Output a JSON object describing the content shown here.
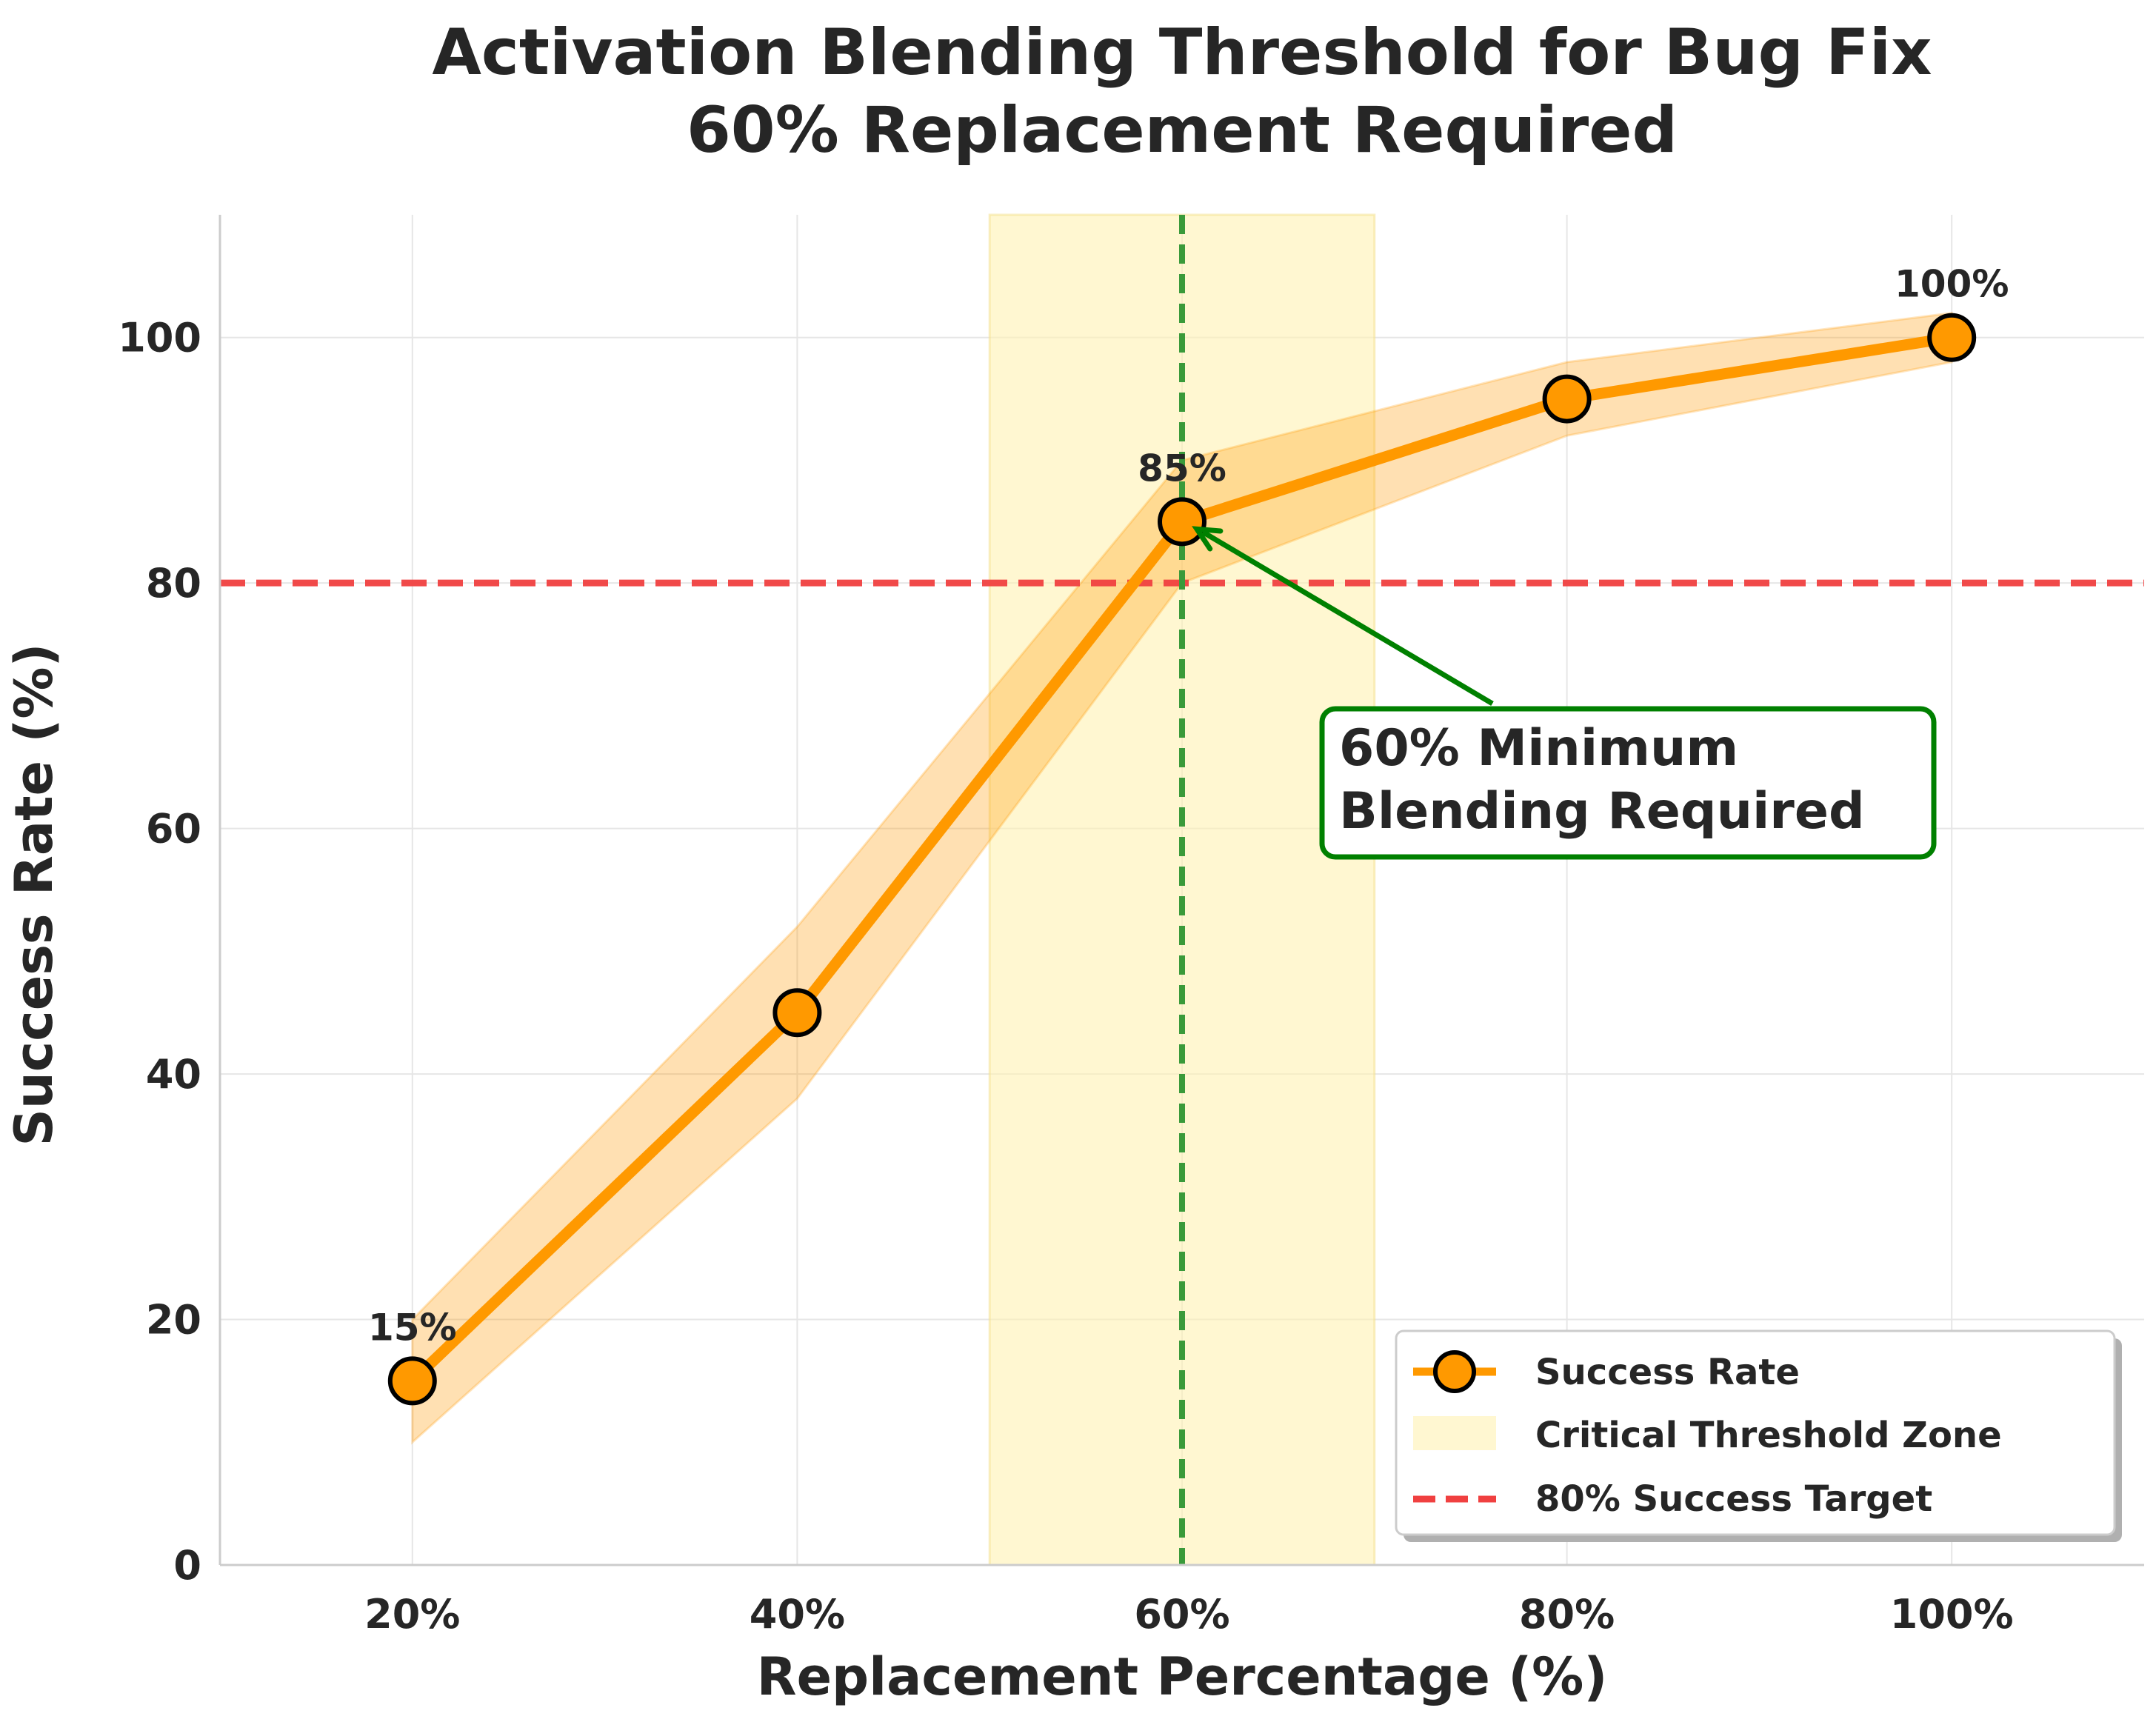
{
  "chart_data": {
    "type": "line",
    "title_lines": [
      "Activation Blending Threshold for Bug Fix",
      "60% Replacement Required"
    ],
    "xlabel": "Replacement Percentage (%)",
    "ylabel": "Success Rate (%)",
    "x": [
      20,
      40,
      60,
      80,
      100
    ],
    "x_tick_labels": [
      "20%",
      "40%",
      "60%",
      "80%",
      "100%"
    ],
    "y_ticks": [
      0,
      20,
      40,
      60,
      80,
      100
    ],
    "xlim": [
      10,
      110
    ],
    "ylim": [
      0,
      110
    ],
    "grid": true,
    "series": [
      {
        "name": "Success Rate",
        "color": "#ff9900",
        "values": [
          15,
          45,
          85,
          95,
          100
        ],
        "band_lower": [
          10,
          38,
          80,
          92,
          98
        ],
        "band_upper": [
          20,
          52,
          90,
          98,
          102
        ]
      }
    ],
    "point_labels": [
      {
        "x": 20,
        "y": 15,
        "text": "15%"
      },
      {
        "x": 60,
        "y": 85,
        "text": "85%"
      },
      {
        "x": 100,
        "y": 100,
        "text": "100%"
      }
    ],
    "threshold_zone": {
      "name": "Critical Threshold Zone",
      "x_start": 50,
      "x_end": 70,
      "color": "#fff2b3"
    },
    "target_line": {
      "name": "80% Success Target",
      "y": 80,
      "color": "#f04040"
    },
    "vertical_marker": {
      "x": 60,
      "color": "#3a9a3a"
    },
    "annotation": {
      "lines": [
        "60% Minimum",
        "Blending Required"
      ],
      "arrow_to": {
        "x": 60,
        "y": 85
      },
      "text_anchor": {
        "x": 70,
        "y": 63
      },
      "color": "#008000"
    },
    "legend": {
      "position": "bottom-right",
      "entries": [
        "Success Rate",
        "Critical Threshold Zone",
        "80% Success Target"
      ]
    }
  }
}
